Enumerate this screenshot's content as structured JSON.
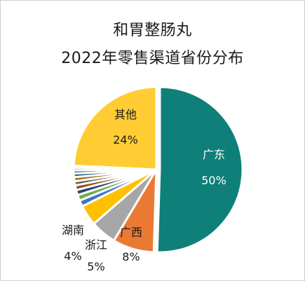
{
  "chart_data": {
    "type": "pie",
    "title": [
      "和胃整肠丸",
      "2022年零售渠道省份分布"
    ],
    "slices": [
      {
        "label": "广东",
        "value": 50,
        "value_text": "50%",
        "color": "#0f7f7a"
      },
      {
        "label": "广西",
        "value": 8,
        "value_text": "8%",
        "color": "#ea7a33"
      },
      {
        "label": "浙江",
        "value": 5,
        "value_text": "5%",
        "color": "#a6a6a6"
      },
      {
        "label": "湖南",
        "value": 4,
        "value_text": "4%",
        "color": "#ffc000"
      },
      {
        "label": "",
        "value": 1.2,
        "value_text": "",
        "color": "#4472c4"
      },
      {
        "label": "",
        "value": 1.1,
        "value_text": "",
        "color": "#70ad47"
      },
      {
        "label": "",
        "value": 1.0,
        "value_text": "",
        "color": "#264478"
      },
      {
        "label": "",
        "value": 0.9,
        "value_text": "",
        "color": "#9e480e"
      },
      {
        "label": "",
        "value": 0.8,
        "value_text": "",
        "color": "#636363"
      },
      {
        "label": "",
        "value": 0.8,
        "value_text": "",
        "color": "#997300"
      },
      {
        "label": "",
        "value": 0.7,
        "value_text": "",
        "color": "#255e91"
      },
      {
        "label": "",
        "value": 0.6,
        "value_text": "",
        "color": "#43682b"
      },
      {
        "label": "",
        "value": 0.5,
        "value_text": "",
        "color": "#698ed0"
      },
      {
        "label": "",
        "value": 0.4,
        "value_text": "",
        "color": "#f1975a"
      },
      {
        "label": "其他",
        "value": 24,
        "value_text": "24%",
        "color": "#ffcd33"
      }
    ]
  }
}
